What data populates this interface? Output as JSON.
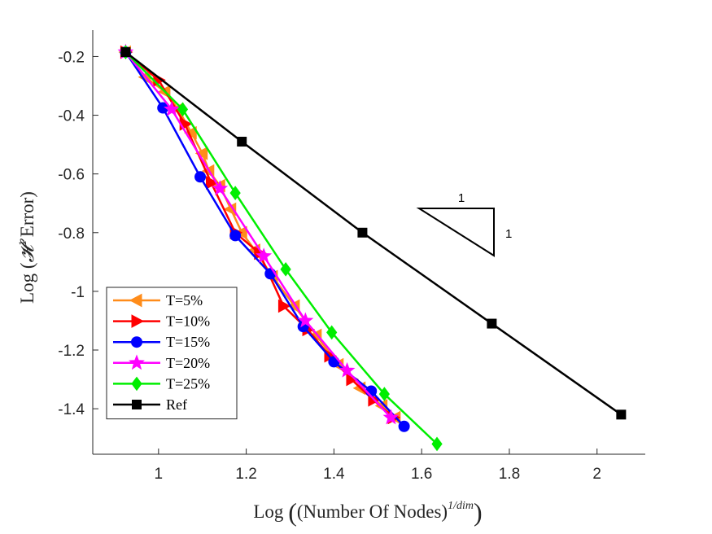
{
  "chart_data": {
    "type": "line",
    "xlabel_prefix": "Log",
    "xlabel_inner": "(Number Of Nodes)",
    "xlabel_sup": "1/dim",
    "ylabel_prefix": "Log",
    "ylabel_symbol": "𝓗",
    "ylabel_sup": "1",
    "ylabel_word": "Error",
    "xlim": [
      0.85,
      2.11
    ],
    "ylim": [
      -1.555,
      -0.11
    ],
    "xticks": [
      1,
      1.2,
      1.4,
      1.6,
      1.8,
      2
    ],
    "xtick_labels": [
      "1",
      "1.2",
      "1.4",
      "1.6",
      "1.8",
      "2"
    ],
    "yticks": [
      -0.2,
      -0.4,
      -0.6,
      -0.8,
      -1,
      -1.2,
      -1.4
    ],
    "ytick_labels": [
      "-0.2",
      "-0.4",
      "-0.6",
      "-0.8",
      "-1",
      "-1.2",
      "-1.4"
    ],
    "slope_triangle": {
      "horizontal_label": "1",
      "vertical_label": "1"
    },
    "series": [
      {
        "name": "T=5%",
        "color": "#FF8C1A",
        "marker": "triangle-left",
        "x": [
          0.925,
          0.97,
          1.015,
          1.045,
          1.075,
          1.1,
          1.115,
          1.14,
          1.165,
          1.19,
          1.22,
          1.26,
          1.31,
          1.36,
          1.41,
          1.46,
          1.51,
          1.54
        ],
        "y": [
          -0.185,
          -0.27,
          -0.32,
          -0.38,
          -0.46,
          -0.53,
          -0.59,
          -0.64,
          -0.72,
          -0.8,
          -0.86,
          -0.95,
          -1.05,
          -1.15,
          -1.25,
          -1.33,
          -1.39,
          -1.43
        ]
      },
      {
        "name": "T=10%",
        "color": "#FF0000",
        "marker": "triangle-right",
        "x": [
          0.925,
          1.0,
          1.06,
          1.12,
          1.175,
          1.23,
          1.285,
          1.34,
          1.39,
          1.44,
          1.49,
          1.535
        ],
        "y": [
          -0.185,
          -0.28,
          -0.43,
          -0.63,
          -0.8,
          -0.87,
          -1.05,
          -1.13,
          -1.22,
          -1.3,
          -1.37,
          -1.43
        ]
      },
      {
        "name": "T=15%",
        "color": "#0000FF",
        "marker": "circle",
        "x": [
          0.925,
          1.01,
          1.095,
          1.175,
          1.255,
          1.33,
          1.4,
          1.485,
          1.56
        ],
        "y": [
          -0.185,
          -0.375,
          -0.61,
          -0.81,
          -0.94,
          -1.12,
          -1.24,
          -1.34,
          -1.46
        ]
      },
      {
        "name": "T=20%",
        "color": "#FF00FF",
        "marker": "star",
        "x": [
          0.925,
          1.03,
          1.14,
          1.24,
          1.335,
          1.43,
          1.53
        ],
        "y": [
          -0.185,
          -0.38,
          -0.65,
          -0.88,
          -1.1,
          -1.27,
          -1.43
        ]
      },
      {
        "name": "T=25%",
        "color": "#00EE00",
        "marker": "diamond",
        "x": [
          0.925,
          1.055,
          1.175,
          1.29,
          1.395,
          1.515,
          1.635
        ],
        "y": [
          -0.185,
          -0.38,
          -0.665,
          -0.925,
          -1.14,
          -1.35,
          -1.52
        ]
      },
      {
        "name": "Ref",
        "color": "#000000",
        "marker": "square",
        "x": [
          0.925,
          1.19,
          1.465,
          1.76,
          2.055
        ],
        "y": [
          -0.185,
          -0.49,
          -0.8,
          -1.11,
          -1.42
        ]
      }
    ]
  }
}
